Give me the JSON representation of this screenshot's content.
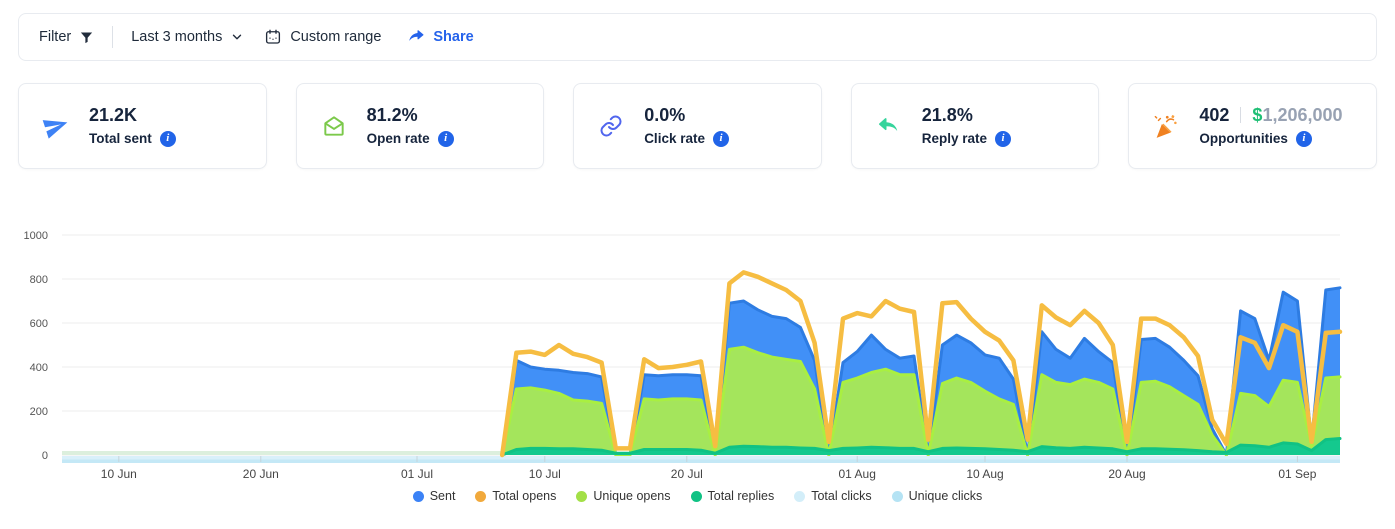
{
  "toolbar": {
    "filter_label": "Filter",
    "range_label": "Last 3 months",
    "custom_range_label": "Custom range",
    "share_label": "Share"
  },
  "stats": [
    {
      "value": "21.2K",
      "label": "Total sent",
      "icon": "paper-plane-icon",
      "icon_color": "#3e82f5"
    },
    {
      "value": "81.2%",
      "label": "Open rate",
      "icon": "envelope-open-icon",
      "icon_color": "#7cc94b"
    },
    {
      "value": "0.0%",
      "label": "Click rate",
      "icon": "link-icon",
      "icon_color": "#5166ee"
    },
    {
      "value": "21.8%",
      "label": "Reply rate",
      "icon": "reply-icon",
      "icon_color": "#35d49c"
    },
    {
      "value": "402",
      "label": "Opportunities",
      "icon": "party-popper-icon",
      "icon_color": "#f08121",
      "currency_symbol": "$",
      "amount": "1,206,000"
    }
  ],
  "chart_data": {
    "type": "area",
    "title": "",
    "xlabel": "",
    "ylabel": "",
    "y_max": 1000,
    "y_ticks": [
      0,
      200,
      400,
      600,
      800,
      1000
    ],
    "grid": "horizontal",
    "legend_position": "bottom",
    "n_days": 91,
    "start_date_label": "06 Jun",
    "data_start_day": 31,
    "pre_data_band_color": "#dcefdd",
    "x_ticks": [
      {
        "label": "10 Jun",
        "day": 4
      },
      {
        "label": "20 Jun",
        "day": 14
      },
      {
        "label": "01 Jul",
        "day": 25
      },
      {
        "label": "10 Jul",
        "day": 34
      },
      {
        "label": "20 Jul",
        "day": 44
      },
      {
        "label": "01 Aug",
        "day": 56
      },
      {
        "label": "10 Aug",
        "day": 65
      },
      {
        "label": "20 Aug",
        "day": 75
      },
      {
        "label": "01 Sep",
        "day": 87
      }
    ],
    "series": [
      {
        "name": "Sent",
        "render": "area",
        "fill": "#4190f7",
        "stroke": "#2e7ce2",
        "dot": "#3b82f6",
        "values": [
          0,
          430,
          400,
          390,
          385,
          375,
          370,
          355,
          0,
          0,
          365,
          360,
          365,
          365,
          360,
          0,
          690,
          700,
          660,
          630,
          620,
          580,
          430,
          0,
          420,
          470,
          545,
          480,
          440,
          450,
          0,
          500,
          545,
          510,
          455,
          440,
          345,
          0,
          560,
          480,
          440,
          530,
          470,
          420,
          0,
          525,
          530,
          490,
          430,
          360,
          120,
          0,
          655,
          620,
          430,
          740,
          700,
          60,
          750,
          760
        ]
      },
      {
        "name": "Total opens",
        "render": "line",
        "stroke": "#f6bd42",
        "dot": "#f1a93c",
        "values": [
          0,
          465,
          470,
          455,
          500,
          460,
          445,
          420,
          30,
          30,
          435,
          395,
          400,
          410,
          425,
          40,
          780,
          830,
          810,
          780,
          750,
          700,
          510,
          60,
          620,
          645,
          630,
          700,
          665,
          650,
          70,
          690,
          695,
          620,
          560,
          520,
          430,
          70,
          680,
          625,
          590,
          655,
          600,
          500,
          60,
          620,
          620,
          590,
          535,
          450,
          160,
          50,
          535,
          510,
          395,
          590,
          560,
          60,
          555,
          560
        ]
      },
      {
        "name": "Unique opens",
        "render": "area",
        "fill": "#a4e55c",
        "stroke": "#a9ef41",
        "dot": "#a3e047",
        "values": [
          0,
          300,
          305,
          295,
          280,
          250,
          245,
          235,
          0,
          0,
          255,
          250,
          255,
          255,
          250,
          0,
          480,
          490,
          465,
          445,
          435,
          425,
          300,
          0,
          330,
          350,
          375,
          390,
          365,
          365,
          0,
          325,
          350,
          330,
          290,
          255,
          230,
          0,
          365,
          330,
          320,
          345,
          330,
          300,
          0,
          330,
          335,
          310,
          270,
          230,
          90,
          0,
          280,
          270,
          220,
          340,
          330,
          40,
          350,
          355
        ]
      },
      {
        "name": "Total replies",
        "render": "area",
        "fill": "#14c98e",
        "stroke": "#10c284",
        "dot": "#10c284",
        "values": [
          0,
          25,
          30,
          30,
          28,
          28,
          25,
          22,
          8,
          8,
          25,
          25,
          25,
          25,
          22,
          8,
          35,
          40,
          38,
          35,
          35,
          32,
          30,
          20,
          30,
          32,
          35,
          33,
          30,
          30,
          15,
          30,
          32,
          30,
          28,
          25,
          22,
          15,
          38,
          33,
          30,
          35,
          32,
          28,
          15,
          28,
          28,
          26,
          24,
          20,
          15,
          12,
          45,
          42,
          35,
          55,
          50,
          20,
          70,
          75
        ]
      },
      {
        "name": "Total clicks",
        "render": "band",
        "fill": "#d9f0fa",
        "dot": "#d3eef9",
        "values": [
          0,
          0,
          0,
          0,
          0,
          0,
          0,
          0,
          0,
          0,
          0,
          0,
          0,
          0,
          0,
          0,
          0,
          0,
          0,
          0,
          0,
          0,
          0,
          0,
          0,
          0,
          0,
          0,
          0,
          0,
          0,
          0,
          0,
          0,
          0,
          0,
          0,
          0,
          0,
          0,
          0,
          0,
          0,
          0,
          0,
          0,
          0,
          0,
          0,
          0,
          0,
          0,
          0,
          0,
          0,
          0,
          0,
          0,
          0,
          0
        ]
      },
      {
        "name": "Unique clicks",
        "render": "band",
        "fill": "#c4e8f6",
        "dot": "#b5e3f4",
        "values": [
          0,
          0,
          0,
          0,
          0,
          0,
          0,
          0,
          0,
          0,
          0,
          0,
          0,
          0,
          0,
          0,
          0,
          0,
          0,
          0,
          0,
          0,
          0,
          0,
          0,
          0,
          0,
          0,
          0,
          0,
          0,
          0,
          0,
          0,
          0,
          0,
          0,
          0,
          0,
          0,
          0,
          0,
          0,
          0,
          0,
          0,
          0,
          0,
          0,
          0,
          0,
          0,
          0,
          0,
          0,
          0,
          0,
          0,
          0,
          0
        ]
      }
    ]
  }
}
